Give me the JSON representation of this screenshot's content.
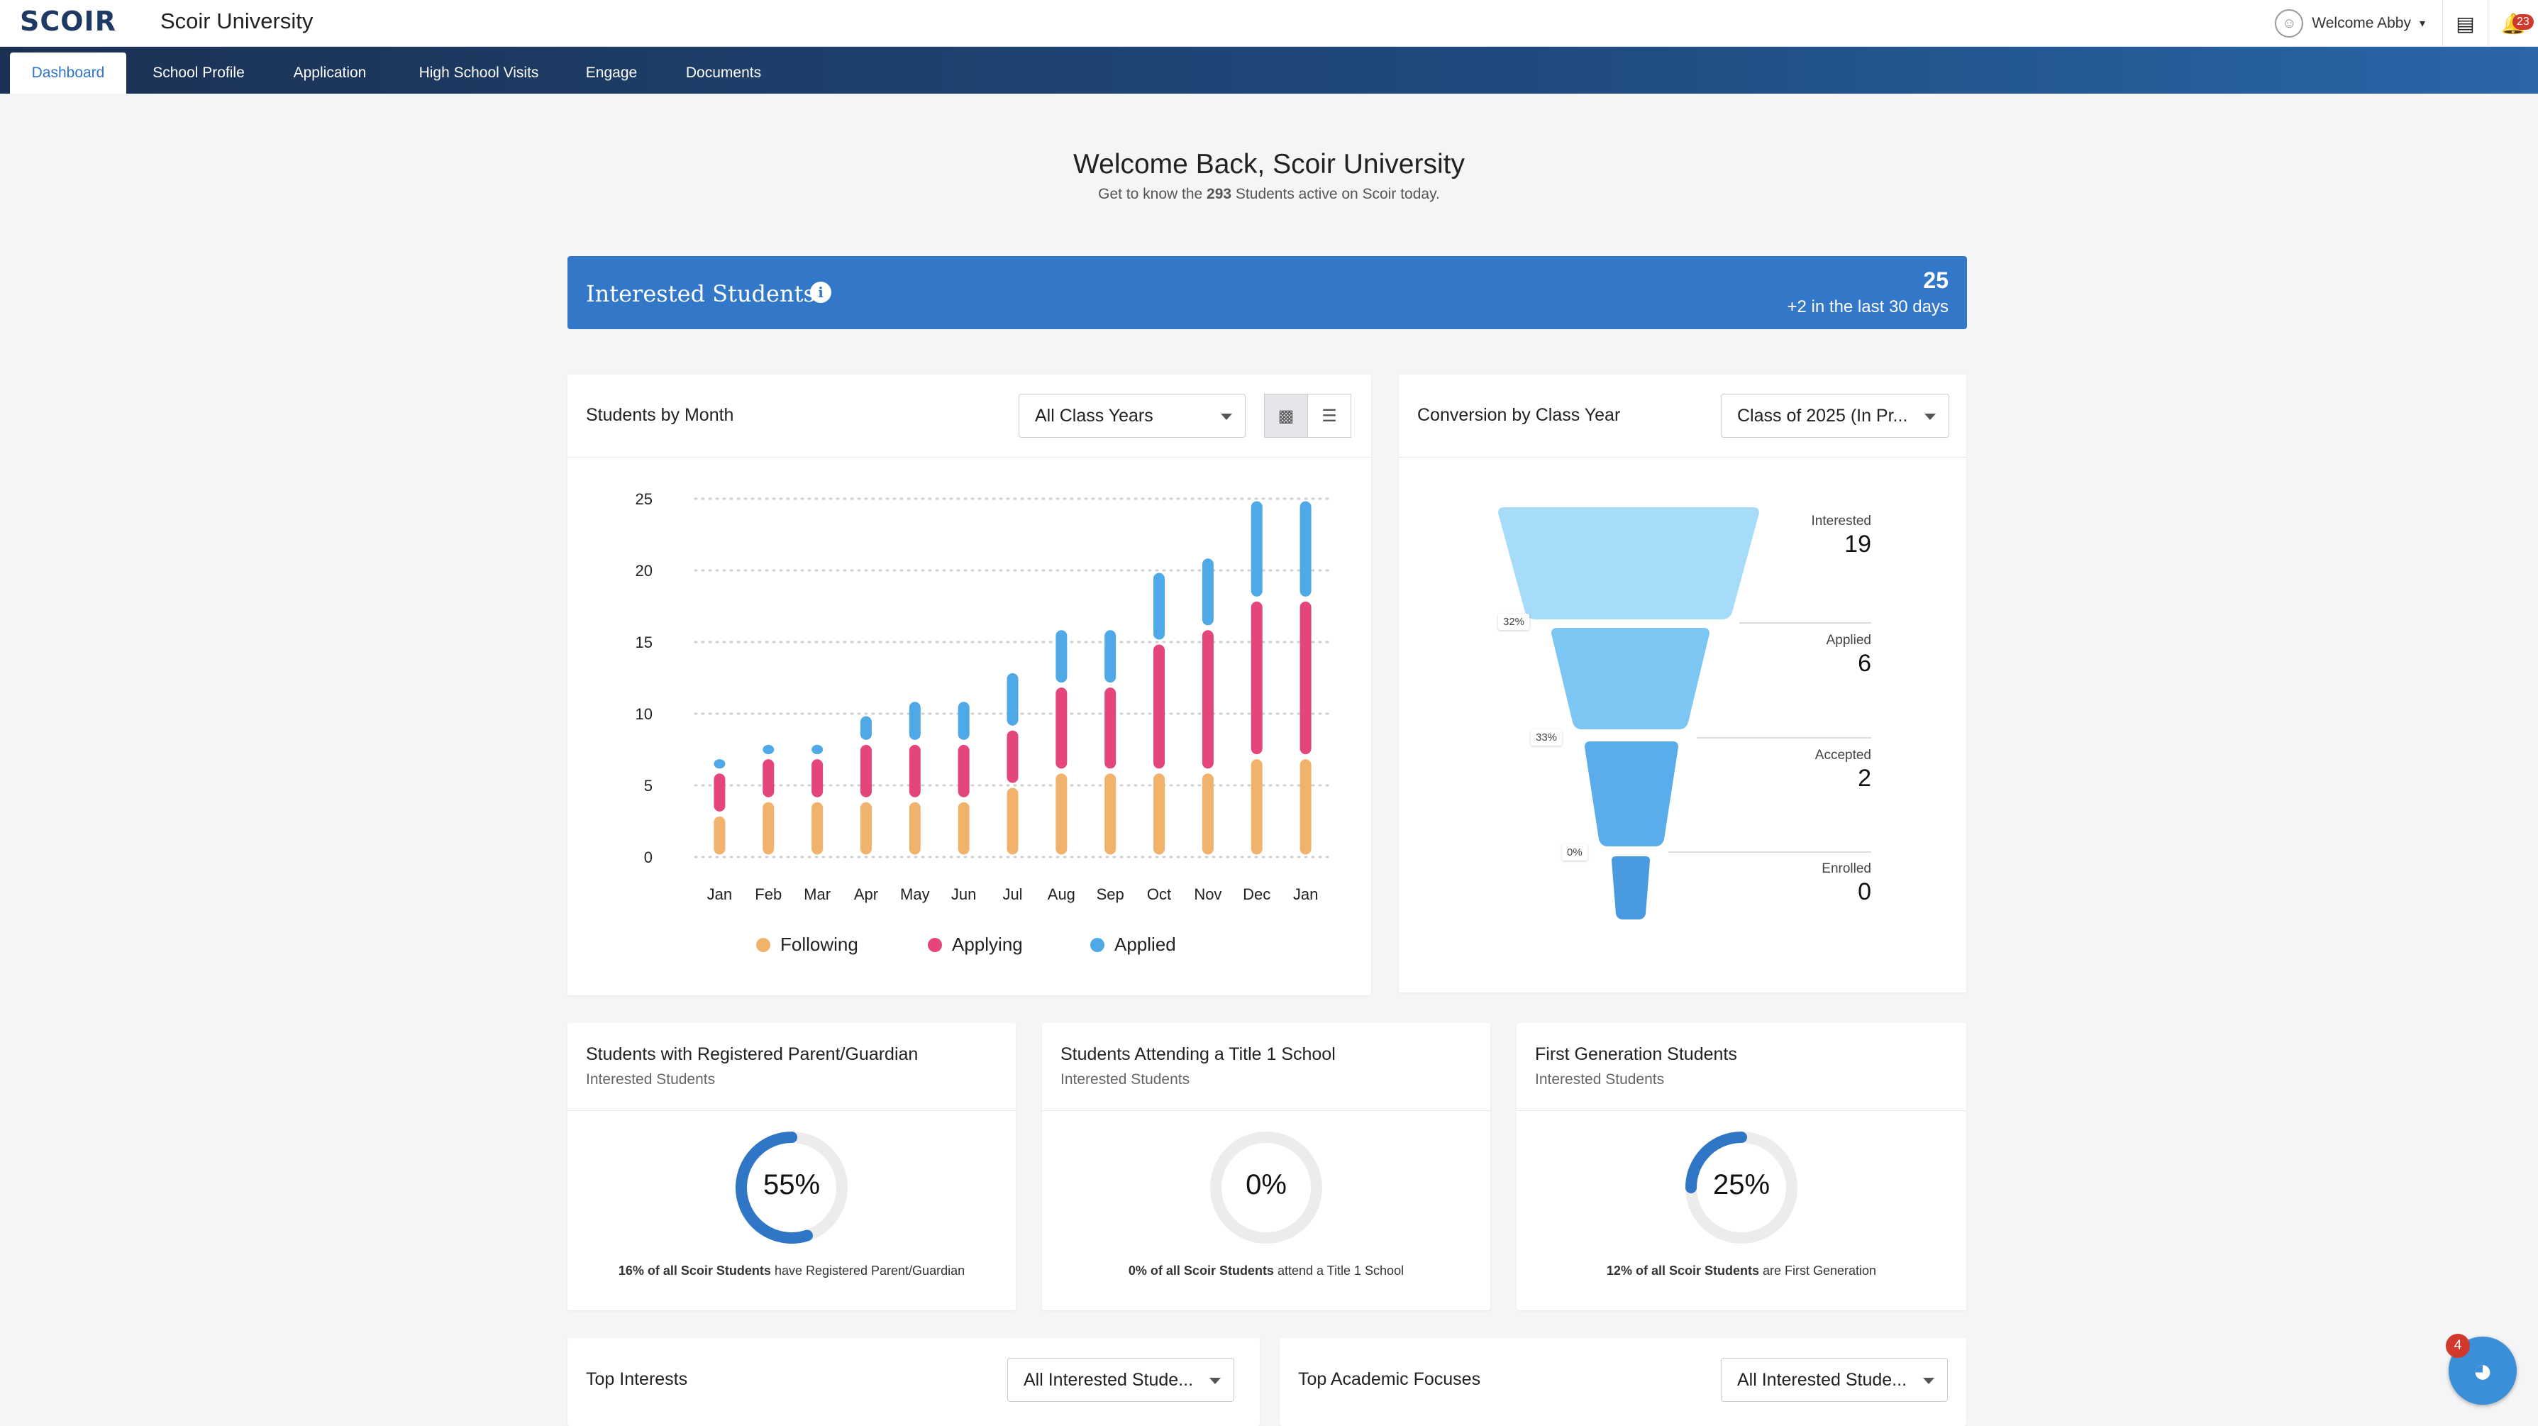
{
  "app": {
    "logo": "SCOIR",
    "title": "Scoir University"
  },
  "topbar": {
    "welcome_label": "Welcome Abby",
    "notification_count": "23"
  },
  "nav": {
    "tabs": [
      {
        "label": "Dashboard",
        "active": true
      },
      {
        "label": "School Profile"
      },
      {
        "label": "Application"
      },
      {
        "label": "High School Visits"
      },
      {
        "label": "Engage"
      },
      {
        "label": "Documents"
      }
    ]
  },
  "header": {
    "title": "Welcome Back, Scoir University",
    "sub_prefix": "Get to know the ",
    "sub_count": "293",
    "sub_suffix": " Students active on Scoir today."
  },
  "banner": {
    "title": "Interested Students",
    "count": "25",
    "delta": "+2 in the last 30 days"
  },
  "students_by_month": {
    "title": "Students by Month",
    "filter": "All Class Years",
    "chart_data": {
      "type": "bar",
      "stacked": true,
      "categories": [
        "Jan",
        "Feb",
        "Mar",
        "Apr",
        "May",
        "Jun",
        "Jul",
        "Aug",
        "Sep",
        "Oct",
        "Nov",
        "Dec",
        "Jan"
      ],
      "series": [
        {
          "name": "Following",
          "color": "#f1b36c",
          "values": [
            3,
            4,
            4,
            4,
            4,
            4,
            5,
            6,
            6,
            6,
            6,
            7,
            7
          ]
        },
        {
          "name": "Applying",
          "color": "#e4457c",
          "values": [
            3,
            3,
            3,
            4,
            4,
            4,
            4,
            6,
            6,
            9,
            10,
            11,
            11
          ]
        },
        {
          "name": "Applied",
          "color": "#4fa9e6",
          "values": [
            1,
            1,
            1,
            2,
            3,
            3,
            4,
            4,
            4,
            5,
            5,
            7,
            7
          ]
        }
      ],
      "ylim": [
        0,
        25
      ],
      "yticks": [
        0,
        5,
        10,
        15,
        20,
        25
      ],
      "grid": true,
      "legend": "bottom"
    }
  },
  "conversion": {
    "title": "Conversion by Class Year",
    "filter": "Class of 2025 (In Pr...",
    "stages": [
      {
        "label": "Interested",
        "value": "19"
      },
      {
        "label": "Applied",
        "value": "6"
      },
      {
        "label": "Accepted",
        "value": "2"
      },
      {
        "label": "Enrolled",
        "value": "0"
      }
    ],
    "rates": [
      "32%",
      "33%",
      "0%"
    ]
  },
  "stats": [
    {
      "title": "Students with Registered Parent/Guardian",
      "subtitle": "Interested Students",
      "value": "55%",
      "fraction": 0.55,
      "foot_bold": "16% of all Scoir Students",
      "foot_rest": " have Registered Parent/Guardian"
    },
    {
      "title": "Students Attending a Title 1 School",
      "subtitle": "Interested Students",
      "value": "0%",
      "fraction": 0,
      "foot_bold": "0% of all Scoir Students",
      "foot_rest": " attend a Title 1 School"
    },
    {
      "title": "First Generation Students",
      "subtitle": "Interested Students",
      "value": "25%",
      "fraction": 0.25,
      "foot_bold": "12% of all Scoir Students",
      "foot_rest": " are First Generation"
    }
  ],
  "top_interests": {
    "title": "Top Interests",
    "filter": "All Interested Stude..."
  },
  "top_academic": {
    "title": "Top Academic Focuses",
    "filter": "All Interested Stude..."
  },
  "help": {
    "badge": "4"
  },
  "colors": {
    "accent": "#3377c9",
    "nav_dark": "#1b3153",
    "donut": "#2f76c6"
  }
}
